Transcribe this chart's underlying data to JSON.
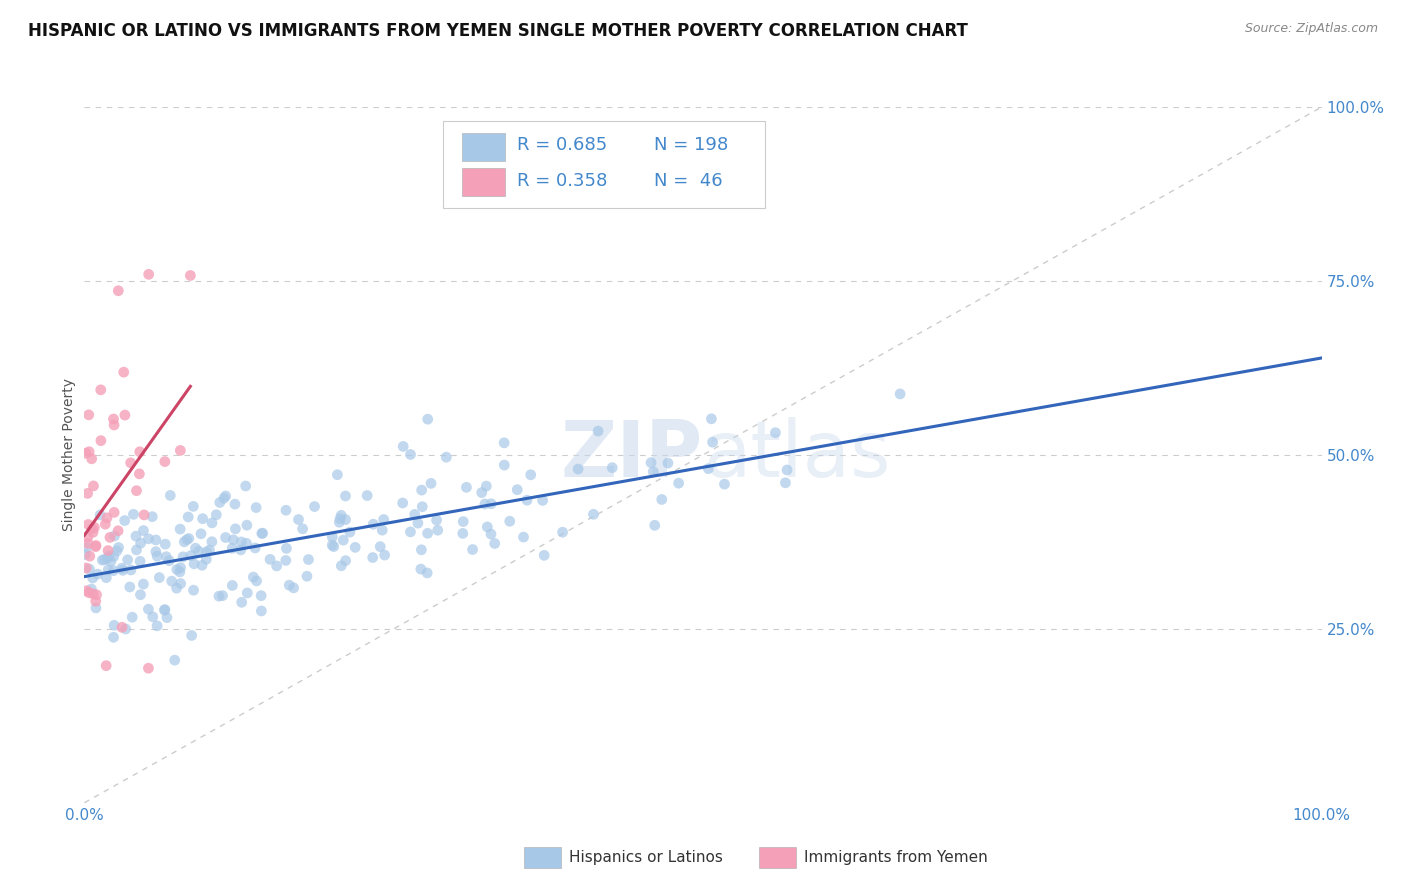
{
  "title": "HISPANIC OR LATINO VS IMMIGRANTS FROM YEMEN SINGLE MOTHER POVERTY CORRELATION CHART",
  "source": "Source: ZipAtlas.com",
  "ylabel": "Single Mother Poverty",
  "xlim": [
    0,
    1
  ],
  "ylim": [
    0,
    1
  ],
  "x_tick_labels": [
    "0.0%",
    "100.0%"
  ],
  "y_tick_labels_right": [
    "25.0%",
    "50.0%",
    "75.0%",
    "100.0%"
  ],
  "y_tick_positions": [
    0.25,
    0.5,
    0.75,
    1.0
  ],
  "watermark_zip": "ZIP",
  "watermark_atlas": "atlas",
  "legend_r1": "R = 0.685",
  "legend_n1": "N = 198",
  "legend_r2": "R = 0.358",
  "legend_n2": "N =  46",
  "color_blue": "#a8c8e8",
  "color_pink": "#f4a0b8",
  "color_blue_dark": "#5588cc",
  "color_blue_text": "#4488cc",
  "line_blue": "#3366bb",
  "line_pink": "#cc4466",
  "ref_line_color": "#cccccc",
  "background_color": "#ffffff",
  "title_fontsize": 12,
  "label_fontsize": 10,
  "tick_fontsize": 11,
  "n_blue": 198,
  "n_pink": 46,
  "R_blue": 0.685,
  "R_pink": 0.358
}
